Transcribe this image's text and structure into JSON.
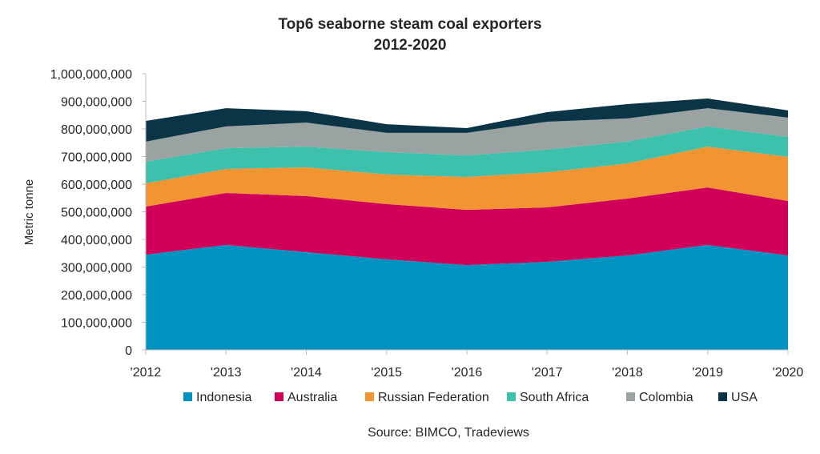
{
  "chart_data": {
    "type": "area",
    "stacked": true,
    "title": [
      "Top6 seaborne steam coal exporters",
      "2012-2020"
    ],
    "xlabel": "",
    "ylabel": "Metric tonne",
    "ylim": [
      0,
      1000000000
    ],
    "yticks": [
      0,
      100000000,
      200000000,
      300000000,
      400000000,
      500000000,
      600000000,
      700000000,
      800000000,
      900000000,
      1000000000
    ],
    "ytick_labels": [
      "0",
      "100,000,000",
      "200,000,000",
      "300,000,000",
      "400,000,000",
      "500,000,000",
      "600,000,000",
      "700,000,000",
      "800,000,000",
      "900,000,000",
      "1,000,000,000"
    ],
    "categories": [
      "'2012",
      "'2013",
      "'2014",
      "'2015",
      "'2016",
      "'2017",
      "'2018",
      "'2019",
      "'2020"
    ],
    "series": [
      {
        "name": "Indonesia",
        "color": "#0092C0",
        "values": [
          345000000,
          380000000,
          354000000,
          328000000,
          307000000,
          319000000,
          342000000,
          380000000,
          342000000
        ]
      },
      {
        "name": "Australia",
        "color": "#D0005A",
        "values": [
          174000000,
          188000000,
          203000000,
          200000000,
          200000000,
          197000000,
          206000000,
          208000000,
          197000000
        ]
      },
      {
        "name": "Russian Federation",
        "color": "#F39433",
        "values": [
          84000000,
          87000000,
          104000000,
          107000000,
          119000000,
          127000000,
          127000000,
          148000000,
          160000000
        ]
      },
      {
        "name": "South Africa",
        "color": "#3EC1AC",
        "values": [
          78000000,
          75000000,
          75000000,
          81000000,
          78000000,
          82000000,
          79000000,
          73000000,
          72000000
        ]
      },
      {
        "name": "Colombia",
        "color": "#9AA3A2",
        "values": [
          73000000,
          79000000,
          87000000,
          70000000,
          82000000,
          101000000,
          84000000,
          66000000,
          70000000
        ]
      },
      {
        "name": "USA",
        "color": "#0B3447",
        "values": [
          75000000,
          66000000,
          41000000,
          31000000,
          17000000,
          35000000,
          52000000,
          35000000,
          26000000
        ]
      }
    ],
    "legend_position": "bottom",
    "grid": false,
    "source": "Source: BIMCO, Tradeviews"
  }
}
